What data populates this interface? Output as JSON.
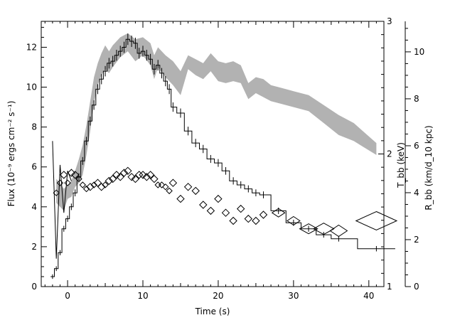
{
  "chart_data": {
    "type": "line",
    "xlabel": "Time (s)",
    "ylabel": "Flux (10⁻⁹ ergs cm⁻² s⁻¹)",
    "ylabel_right1": "T_bb (keV)",
    "ylabel_right2": "R_bb (km/d_10 kpc)",
    "xlim": [
      -3.5,
      42
    ],
    "ylim": [
      0,
      13.3
    ],
    "xticks": [
      0,
      10,
      20,
      30,
      40
    ],
    "yticks": [
      0,
      2,
      4,
      6,
      8,
      10,
      12
    ],
    "right1_ticks": [
      1,
      2,
      3
    ],
    "right1_ylim": [
      1,
      3
    ],
    "right2_ticks": [
      0,
      2,
      4,
      6,
      8,
      10
    ],
    "right2_ylim": [
      0,
      11.3
    ],
    "grid": false,
    "series": [
      {
        "kind": "step-errorbars",
        "x": [
          -2.0,
          -1.5,
          -1.0,
          -0.5,
          0.0,
          0.5,
          1.0,
          1.5,
          2.0,
          2.5,
          3.0,
          3.5,
          4.0,
          4.5,
          5.0,
          5.5,
          6.0,
          6.5,
          7.0,
          7.5,
          8.0,
          8.5,
          9.0,
          9.5,
          10.0,
          10.5,
          11.0,
          11.5,
          12.0,
          12.5,
          13.0,
          13.5,
          14.0,
          15.0,
          16.0,
          17.0,
          18.0,
          19.0,
          20.0,
          21.0,
          22.0,
          23.0,
          24.0,
          25.0,
          26.0,
          28.0,
          30.0,
          32.0,
          34.0,
          36.0,
          41.0
        ],
        "y": [
          0.5,
          0.9,
          1.7,
          2.9,
          3.4,
          4.0,
          4.7,
          5.5,
          6.3,
          7.3,
          8.3,
          9.1,
          9.9,
          10.4,
          10.8,
          11.2,
          11.3,
          11.6,
          11.8,
          12.0,
          12.4,
          12.3,
          12.2,
          11.7,
          11.8,
          11.6,
          11.4,
          10.9,
          11.1,
          10.7,
          10.3,
          9.9,
          9.0,
          8.7,
          7.8,
          7.2,
          6.9,
          6.4,
          6.2,
          5.8,
          5.3,
          5.1,
          4.9,
          4.7,
          4.6,
          3.8,
          3.2,
          2.9,
          2.6,
          2.4,
          1.9
        ]
      },
      {
        "kind": "band",
        "x": [
          -1.5,
          -1.0,
          -0.5,
          0.0,
          0.5,
          1.0,
          1.5,
          2.0,
          2.5,
          3.0,
          3.5,
          4.0,
          4.5,
          5.0,
          5.5,
          6.0,
          7.0,
          8.0,
          9.0,
          10.0,
          11.0,
          11.5,
          12.0,
          13.0,
          14.0,
          15.0,
          16.0,
          17.0,
          18.0,
          19.0,
          20.0,
          21.0,
          22.0,
          23.0,
          24.0,
          25.0,
          26.0,
          27.0,
          28.0,
          30.0,
          32.0,
          34.0,
          36.0,
          38.0,
          41.0
        ],
        "low": [
          4.2,
          4.0,
          3.8,
          4.4,
          4.5,
          5.0,
          5.2,
          5.6,
          6.6,
          7.8,
          9.2,
          10.1,
          10.6,
          10.9,
          10.7,
          11.0,
          11.5,
          11.8,
          11.3,
          11.6,
          11.1,
          10.4,
          11.0,
          10.5,
          10.1,
          9.6,
          10.9,
          10.6,
          10.4,
          10.8,
          10.3,
          10.2,
          10.3,
          10.2,
          9.4,
          9.7,
          9.5,
          9.3,
          9.2,
          9.0,
          8.8,
          8.2,
          7.6,
          7.3,
          6.6
        ],
        "high": [
          5.4,
          5.2,
          4.9,
          5.1,
          5.3,
          5.8,
          6.4,
          7.1,
          8.1,
          9.3,
          10.5,
          11.2,
          11.7,
          12.1,
          11.8,
          12.1,
          12.5,
          12.7,
          12.4,
          12.5,
          12.2,
          11.6,
          12.0,
          11.6,
          11.3,
          10.8,
          11.6,
          11.4,
          11.2,
          11.7,
          11.3,
          11.2,
          11.3,
          11.1,
          10.2,
          10.5,
          10.4,
          10.1,
          10.0,
          9.8,
          9.6,
          9.1,
          8.6,
          8.2,
          7.2
        ]
      },
      {
        "kind": "diamonds",
        "x": [
          -1.5,
          -1.0,
          -0.5,
          0.0,
          0.5,
          1.0,
          1.5,
          2.0,
          2.5,
          3.0,
          3.5,
          4.0,
          4.5,
          5.0,
          5.5,
          6.0,
          6.5,
          7.0,
          7.5,
          8.0,
          8.5,
          9.0,
          9.5,
          10.0,
          10.5,
          11.0,
          11.5,
          12.0,
          12.5,
          13.0,
          13.5,
          14.0,
          15.0,
          16.0,
          17.0,
          18.0,
          19.0,
          20.0,
          21.0,
          22.0,
          23.0,
          24.0,
          25.0,
          26.0,
          28.0,
          30.0,
          32.0,
          34.0,
          36.0,
          41.0
        ],
        "y": [
          4.7,
          5.2,
          5.6,
          5.2,
          5.7,
          5.6,
          5.4,
          5.1,
          4.9,
          5.0,
          5.1,
          5.2,
          5.0,
          5.1,
          5.3,
          5.4,
          5.6,
          5.5,
          5.7,
          5.8,
          5.5,
          5.4,
          5.6,
          5.6,
          5.5,
          5.6,
          5.4,
          5.1,
          5.1,
          5.0,
          4.8,
          5.2,
          4.4,
          5.0,
          4.8,
          4.1,
          3.8,
          4.4,
          3.7,
          3.3,
          3.9,
          3.4,
          3.3,
          3.6,
          3.7,
          3.3,
          2.9,
          2.9,
          2.8,
          3.3
        ],
        "sizes": [
          4,
          4,
          5,
          4,
          5,
          5,
          4,
          4,
          4,
          5,
          4,
          5,
          5,
          4,
          5,
          5,
          5,
          5,
          5,
          5,
          5,
          5,
          5,
          5,
          5,
          5,
          5,
          4,
          4,
          4,
          4,
          5,
          5,
          5,
          5,
          5,
          5,
          5,
          5,
          5,
          5,
          5,
          5,
          5,
          6,
          6,
          7,
          8,
          8,
          13
        ],
        "aspect": [
          1.0,
          1.0,
          1.0,
          1.0,
          1.0,
          1.0,
          1.0,
          1.0,
          1.0,
          1.0,
          1.0,
          1.0,
          1.0,
          1.0,
          1.0,
          1.0,
          1.0,
          1.0,
          1.0,
          1.0,
          1.0,
          1.0,
          1.0,
          1.0,
          1.0,
          1.0,
          1.0,
          1.0,
          1.0,
          1.0,
          1.0,
          1.0,
          1.0,
          1.0,
          1.0,
          1.0,
          1.0,
          1.0,
          1.0,
          1.0,
          1.0,
          1.0,
          1.0,
          1.0,
          1.5,
          1.5,
          1.8,
          1.8,
          1.5,
          2.2
        ]
      }
    ],
    "early_spike": {
      "x": [
        -2.0,
        -1.5,
        -1.0,
        -0.5,
        0.0,
        0.5
      ],
      "y": [
        7.3,
        1.4,
        6.1,
        3.7,
        5.8,
        5.3
      ]
    },
    "band_color": "#b2b2b2"
  }
}
